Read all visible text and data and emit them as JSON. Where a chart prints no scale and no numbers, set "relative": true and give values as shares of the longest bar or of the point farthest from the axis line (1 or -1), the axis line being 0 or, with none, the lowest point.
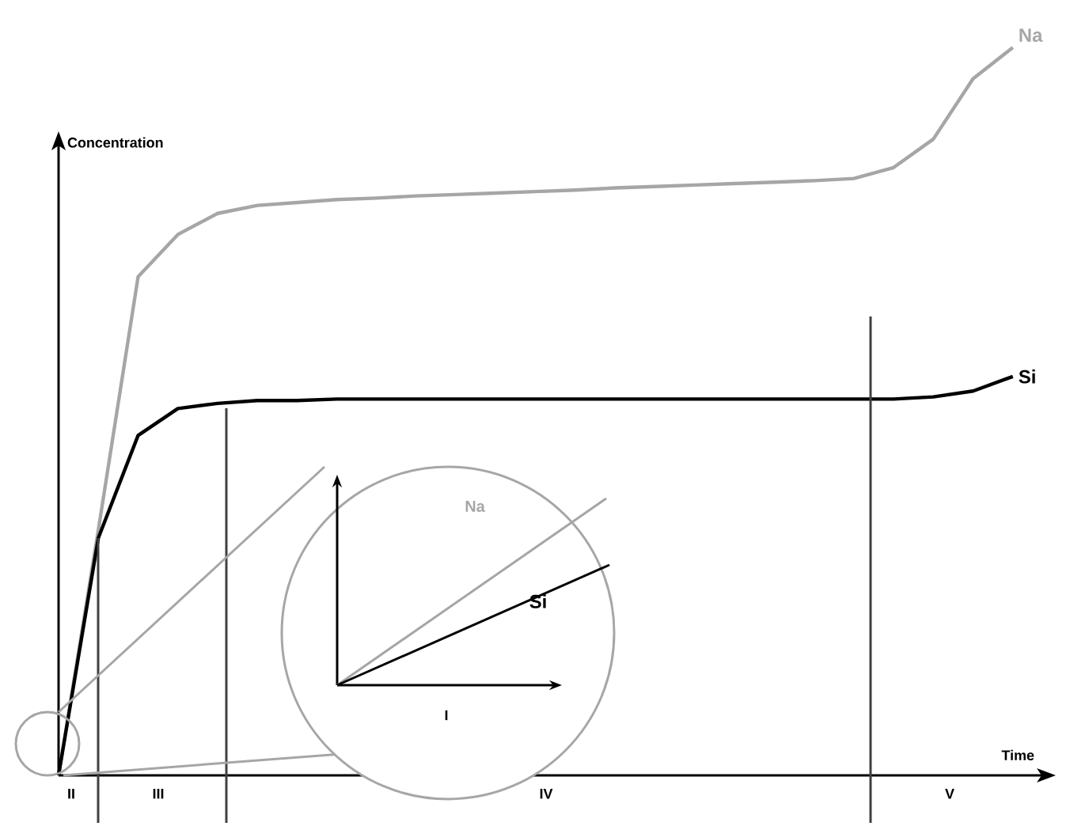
{
  "chart_data": {
    "type": "line",
    "relative": true,
    "xlabel": "Time",
    "ylabel": "Concentration",
    "legend": false,
    "marker": "none",
    "line_style": "solid",
    "categories": [
      null,
      null,
      null,
      null,
      null,
      null,
      null,
      null,
      null,
      null,
      null,
      null,
      null,
      null,
      null,
      null,
      null,
      null,
      null,
      null,
      null,
      null,
      null,
      null,
      null
    ],
    "series": [
      {
        "name": "Na",
        "color": "#a6a6a6",
        "values": [
          0,
          0.337,
          0.685,
          0.743,
          0.772,
          0.783,
          0.787,
          0.791,
          0.793,
          0.796,
          0.798,
          0.8,
          0.802,
          0.804,
          0.807,
          0.809,
          0.811,
          0.813,
          0.815,
          0.817,
          0.82,
          0.835,
          0.874,
          0.957,
          1
        ]
      },
      {
        "name": "Si",
        "color": "#000000",
        "values": [
          0,
          0.326,
          0.467,
          0.504,
          0.511,
          0.515,
          0.515,
          0.517,
          0.517,
          0.517,
          0.517,
          0.517,
          0.517,
          0.517,
          0.517,
          0.517,
          0.517,
          0.517,
          0.517,
          0.517,
          0.517,
          0.517,
          0.52,
          0.528,
          0.548
        ]
      }
    ],
    "annotations": [
      "II",
      "III",
      "IV",
      "V",
      "I"
    ]
  }
}
